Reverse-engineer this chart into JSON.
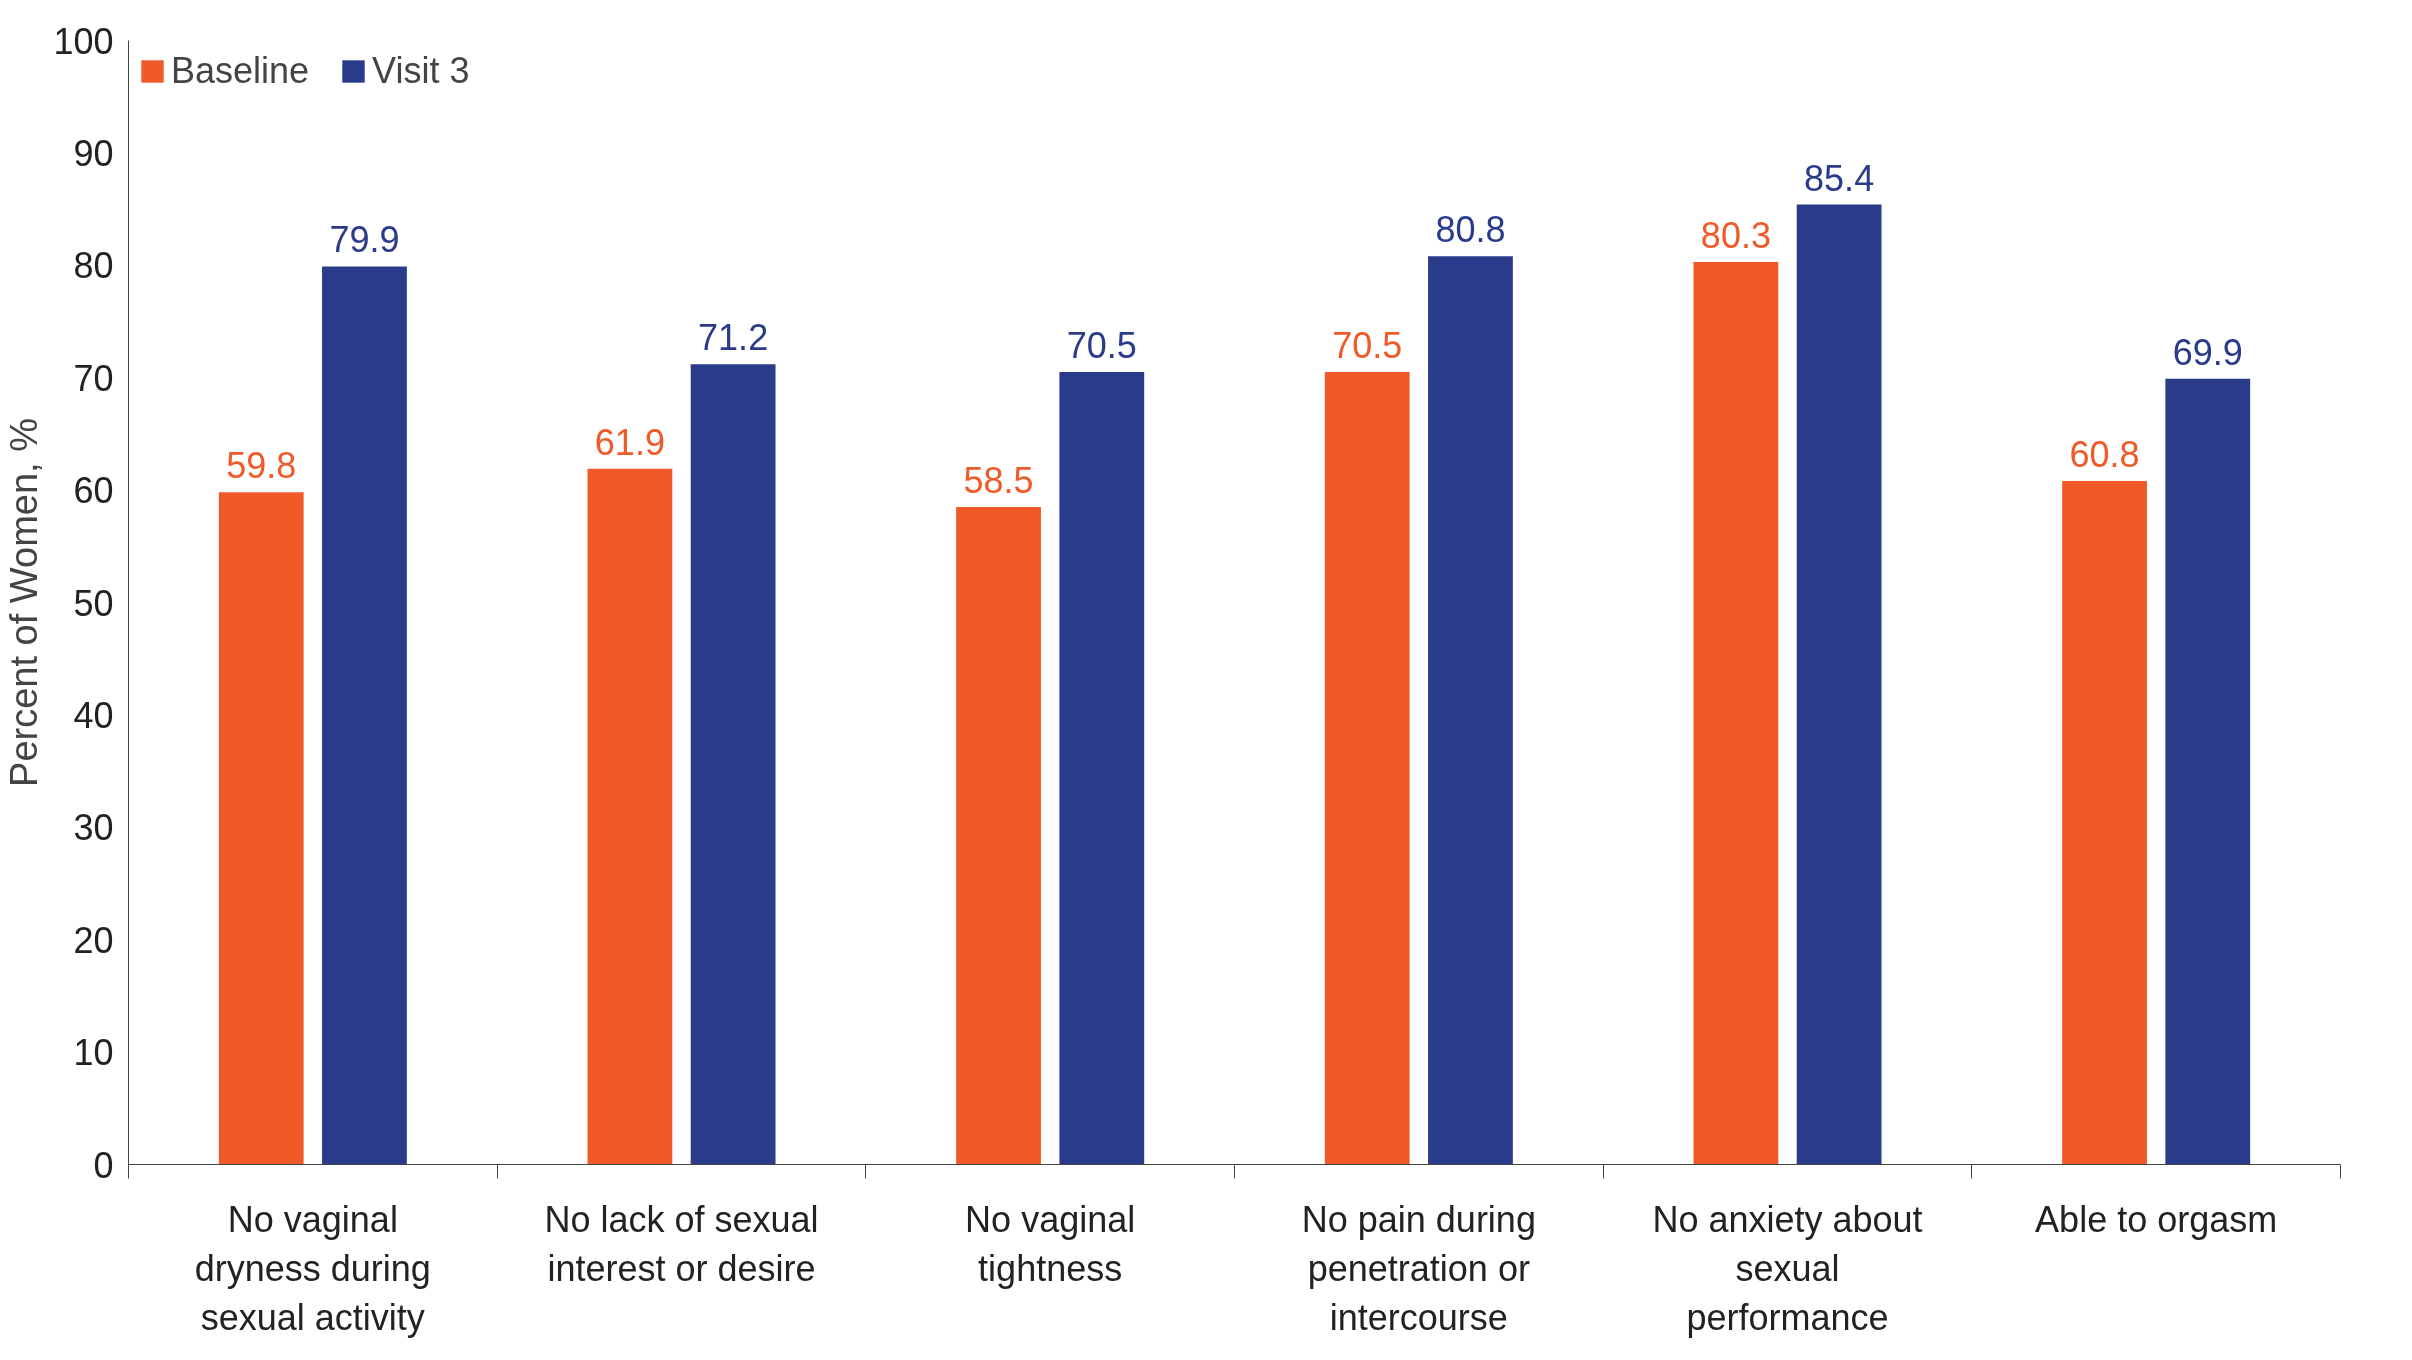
{
  "chart_data": {
    "type": "bar",
    "ylabel": "Percent of Women, %",
    "categories": [
      "No vaginal\ndryness during\nsexual activity",
      "No lack of sexual\ninterest or desire",
      "No vaginal\ntightness",
      "No pain during\npenetration or\nintercourse",
      "No anxiety about\nsexual\nperformance",
      "Able to orgasm"
    ],
    "series": [
      {
        "name": "Baseline",
        "color": "#f05a28",
        "values": [
          59.8,
          61.9,
          58.5,
          70.5,
          80.3,
          60.8
        ]
      },
      {
        "name": "Visit 3",
        "color": "#2b3b8c",
        "values": [
          79.9,
          71.2,
          70.5,
          80.8,
          85.4,
          69.9
        ]
      }
    ],
    "ylim": [
      0,
      100
    ],
    "yticks": [
      0,
      10,
      20,
      30,
      40,
      50,
      60,
      70,
      80,
      90,
      100
    ],
    "data_labels": true,
    "legend": "top left",
    "grid": false
  }
}
